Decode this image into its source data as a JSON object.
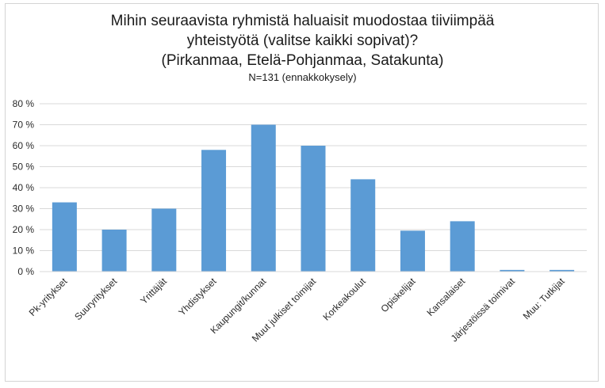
{
  "chart_data": {
    "type": "bar",
    "title_lines": [
      "Mihin seuraavista ryhmistä haluaisit muodostaa tiiviimpää",
      "yhteistyötä (valitse kaikki sopivat)?",
      "(Pirkanmaa, Etelä-Pohjanmaa, Satakunta)"
    ],
    "subtitle": "N=131 (ennakkokysely)",
    "categories": [
      "Pk-yritykset",
      "Suuryritykset",
      "Yrittäjät",
      "Yhdistykset",
      "Kaupungit/kunnat",
      "Muut julkiset toimijat",
      "Korkeakoulut",
      "Opiskelijat",
      "Kansalaiset",
      "Järjestöissä toimivat",
      "Muu: Tutkijat"
    ],
    "values": [
      33,
      20,
      30,
      58,
      70,
      60,
      44,
      19.5,
      24,
      0.8,
      0.8
    ],
    "ylim": [
      0,
      80
    ],
    "yticks": [
      0,
      10,
      20,
      30,
      40,
      50,
      60,
      70,
      80
    ],
    "ytick_labels": [
      "0 %",
      "10 %",
      "20 %",
      "30 %",
      "40 %",
      "50 %",
      "60 %",
      "70 %",
      "80 %"
    ],
    "xlabel": "",
    "ylabel": "",
    "grid": true,
    "legend": "none",
    "bar_color": "#5b9bd5",
    "grid_color": "#d9d9d9"
  }
}
